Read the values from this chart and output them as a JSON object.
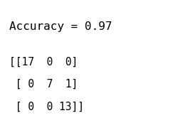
{
  "line1": "Accuracy = 0.97",
  "line2": "[[17  0  0]",
  "line3": " [ 0  7  1]",
  "line4": " [ 0  0 13]]",
  "bg_color": "#ffffff",
  "text_color": "#000000",
  "font_size_title": 11.5,
  "font_size_body": 10.5,
  "font_family": "monospace",
  "font_weight": "normal"
}
